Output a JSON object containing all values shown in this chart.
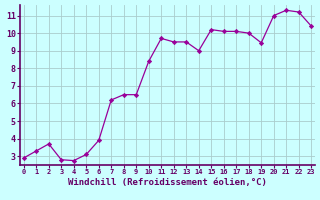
{
  "x": [
    0,
    1,
    2,
    3,
    4,
    5,
    6,
    7,
    8,
    9,
    10,
    11,
    12,
    13,
    14,
    15,
    16,
    17,
    18,
    19,
    20,
    21,
    22,
    23
  ],
  "y": [
    2.9,
    3.3,
    3.7,
    2.8,
    2.75,
    3.1,
    3.9,
    6.2,
    6.5,
    6.5,
    8.4,
    9.7,
    9.5,
    9.5,
    9.0,
    10.2,
    10.1,
    10.1,
    10.0,
    9.45,
    11.0,
    11.3,
    11.2,
    10.4
  ],
  "line_color": "#990099",
  "marker": "D",
  "marker_size": 2.2,
  "bg_color": "#ccffff",
  "grid_color": "#aacccc",
  "axis_label_color": "#660066",
  "tick_color": "#660066",
  "xlabel": "Windchill (Refroidissement éolien,°C)",
  "xlabel_fontsize": 6.5,
  "ytick_labels": [
    "3",
    "4",
    "5",
    "6",
    "7",
    "8",
    "9",
    "10",
    "11"
  ],
  "ytick_values": [
    3,
    4,
    5,
    6,
    7,
    8,
    9,
    10,
    11
  ],
  "xtick_values": [
    0,
    1,
    2,
    3,
    4,
    5,
    6,
    7,
    8,
    9,
    10,
    11,
    12,
    13,
    14,
    15,
    16,
    17,
    18,
    19,
    20,
    21,
    22,
    23
  ],
  "xlim": [
    -0.3,
    23.3
  ],
  "ylim": [
    2.5,
    11.6
  ]
}
